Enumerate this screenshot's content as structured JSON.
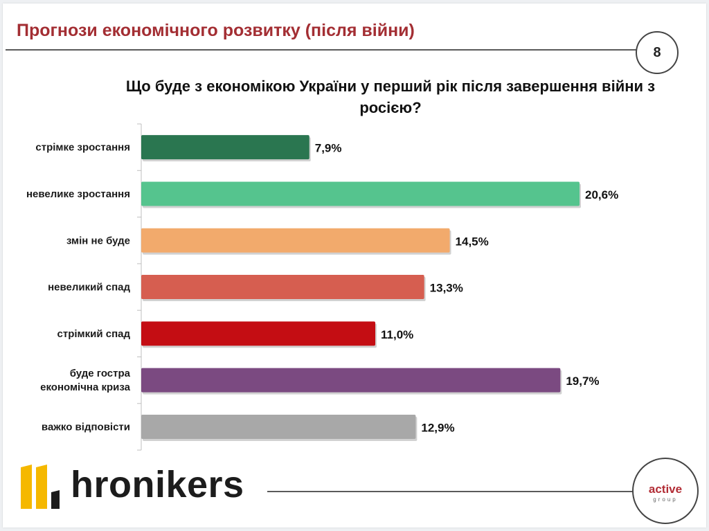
{
  "slide": {
    "title": "Прогнози економічного розвитку (після війни)",
    "page_number": "8",
    "question": "Що буде з економікою України у перший рік після завершення війни з росією?"
  },
  "chart_data": {
    "type": "bar",
    "orientation": "horizontal",
    "title": "Що буде з економікою України у перший рік після завершення війни з росією?",
    "xlabel": "",
    "ylabel": "",
    "categories": [
      "стрімке зростання",
      "невелике зростання",
      "змін не буде",
      "невеликий спад",
      "стрімкий спад",
      "буде гостра економічна криза",
      "важко відповісти"
    ],
    "values": [
      7.9,
      20.6,
      14.5,
      13.3,
      11.0,
      19.7,
      12.9
    ],
    "value_labels": [
      "7,9%",
      "20,6%",
      "14,5%",
      "13,3%",
      "11,0%",
      "19,7%",
      "12,9%"
    ],
    "colors": [
      "#2a7650",
      "#55c48e",
      "#f2aa6c",
      "#d65e50",
      "#c40d13",
      "#7b4a81",
      "#a8a8a8"
    ],
    "grid": false,
    "legend": "none"
  },
  "footer": {
    "logo_text": "hronikers",
    "brand_active": "active",
    "brand_group": "group"
  }
}
